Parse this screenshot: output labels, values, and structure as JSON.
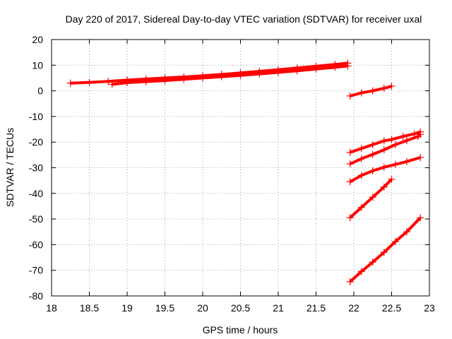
{
  "chart_data": {
    "type": "scatter",
    "title": "Day 220 of 2017, Sidereal Day-to-day VTEC variation (SDTVAR) for receiver uxal",
    "xlabel": "GPS time / hours",
    "ylabel": "SDTVAR / TECUs",
    "xlim": [
      18,
      23
    ],
    "ylim": [
      -80,
      20
    ],
    "xticks": [
      18,
      18.5,
      19,
      19.5,
      20,
      20.5,
      21,
      21.5,
      22,
      22.5,
      23
    ],
    "xtick_labels": [
      "18",
      "18.5",
      "19",
      "19.5",
      "20",
      "20.5",
      "21",
      "21.5",
      "22",
      "22.5",
      "23"
    ],
    "yticks": [
      -80,
      -70,
      -60,
      -50,
      -40,
      -30,
      -20,
      -10,
      0,
      10,
      20
    ],
    "ytick_labels": [
      "-80",
      "-70",
      "-60",
      "-50",
      "-40",
      "-30",
      "-20",
      "-10",
      "0",
      "10",
      "20"
    ],
    "grid": true,
    "marker": "plus",
    "color": "#ff0000",
    "series": [
      {
        "x": [
          18.25,
          18.5,
          18.75,
          19.0,
          19.25,
          19.5,
          19.75,
          20.0,
          20.25,
          20.5,
          20.75,
          21.0,
          21.25,
          21.5,
          21.75,
          21.92
        ],
        "y": [
          3.0,
          3.3,
          3.7,
          4.2,
          4.6,
          5.0,
          5.4,
          5.9,
          6.4,
          7.0,
          7.6,
          8.2,
          8.9,
          9.6,
          10.3,
          10.8
        ]
      },
      {
        "x": [
          18.8,
          19.0,
          19.25,
          19.5,
          19.75,
          20.0,
          20.25,
          20.5,
          20.75,
          21.0,
          21.25,
          21.5,
          21.75,
          21.92
        ],
        "y": [
          2.5,
          3.2,
          3.6,
          4.0,
          4.5,
          5.0,
          5.5,
          6.0,
          6.6,
          7.2,
          7.8,
          8.5,
          9.2,
          9.7
        ]
      },
      {
        "x": [
          21.95,
          22.1,
          22.25,
          22.4,
          22.5
        ],
        "y": [
          -2.0,
          -0.8,
          0.0,
          1.0,
          1.8
        ]
      },
      {
        "x": [
          21.95,
          22.1,
          22.25,
          22.4,
          22.5,
          22.65,
          22.8,
          22.88
        ],
        "y": [
          -24.0,
          -22.5,
          -21.0,
          -19.5,
          -19.0,
          -17.8,
          -16.8,
          -16.0
        ]
      },
      {
        "x": [
          21.95,
          22.1,
          22.25,
          22.4,
          22.55,
          22.7,
          22.85,
          22.88
        ],
        "y": [
          -28.5,
          -26.5,
          -24.8,
          -23.0,
          -21.0,
          -19.4,
          -17.8,
          -17.0
        ]
      },
      {
        "x": [
          21.95,
          22.1,
          22.25,
          22.4,
          22.55,
          22.7,
          22.88
        ],
        "y": [
          -35.5,
          -33.0,
          -31.2,
          -29.8,
          -28.7,
          -27.6,
          -26.0
        ]
      },
      {
        "x": [
          21.95,
          22.1,
          22.25,
          22.4,
          22.5
        ],
        "y": [
          -49.5,
          -45.5,
          -41.5,
          -37.5,
          -34.5
        ]
      },
      {
        "x": [
          21.95,
          22.1,
          22.25,
          22.4,
          22.55,
          22.7,
          22.88
        ],
        "y": [
          -74.5,
          -70.5,
          -66.8,
          -63.0,
          -58.8,
          -55.0,
          -49.5
        ]
      }
    ]
  }
}
